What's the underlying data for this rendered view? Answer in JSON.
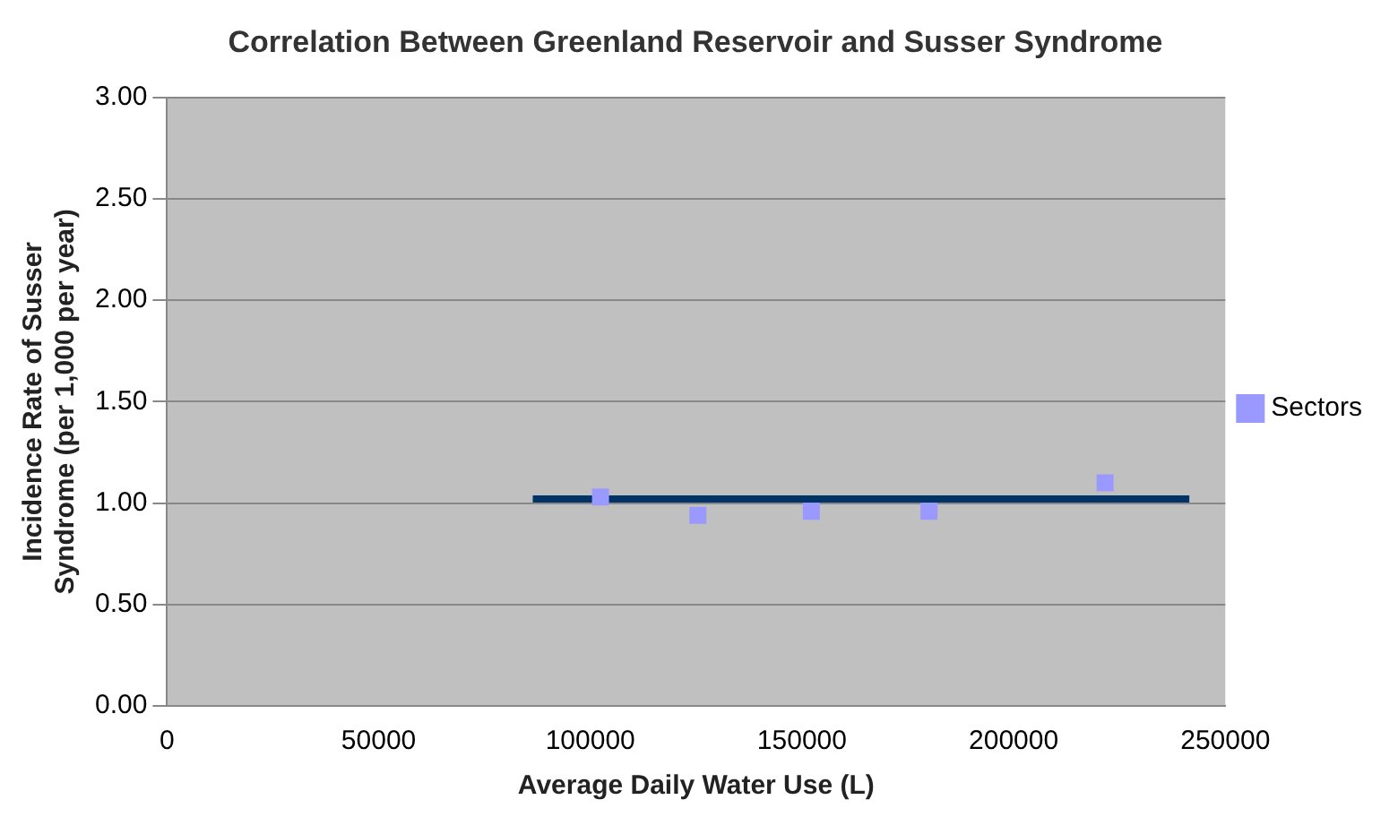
{
  "chart_data": {
    "type": "scatter",
    "title": "Correlation Between Greenland Reservoir and Susser Syndrome",
    "xlabel": "Average Daily Water Use (L)",
    "ylabel": "Incidence Rate of Susser Syndrome (per 1,000 per year)",
    "xlim": [
      0,
      250000
    ],
    "xticks": [
      0,
      50000,
      100000,
      150000,
      200000,
      250000
    ],
    "ylim": [
      0,
      3
    ],
    "yticks": [
      {
        "value": 0,
        "label": "0.00"
      },
      {
        "value": 0.5,
        "label": "0.50"
      },
      {
        "value": 1,
        "label": "1.00"
      },
      {
        "value": 1.5,
        "label": "1.50"
      },
      {
        "value": 2,
        "label": "2.00"
      },
      {
        "value": 2.5,
        "label": "2.50"
      },
      {
        "value": 3,
        "label": "3.00"
      }
    ],
    "grid": "y",
    "legend": "right",
    "series": [
      {
        "name": "Sectors",
        "color": "#9999ff",
        "marker": "square",
        "x": [
          102400,
          125400,
          152200,
          180000,
          221600
        ],
        "values": [
          1.03,
          0.94,
          0.96,
          0.96,
          1.1
        ]
      },
      {
        "type": "line",
        "color": "#003366",
        "marker": "none",
        "x": [
          86400,
          241500
        ],
        "values": [
          1.02,
          1.02
        ]
      }
    ]
  }
}
